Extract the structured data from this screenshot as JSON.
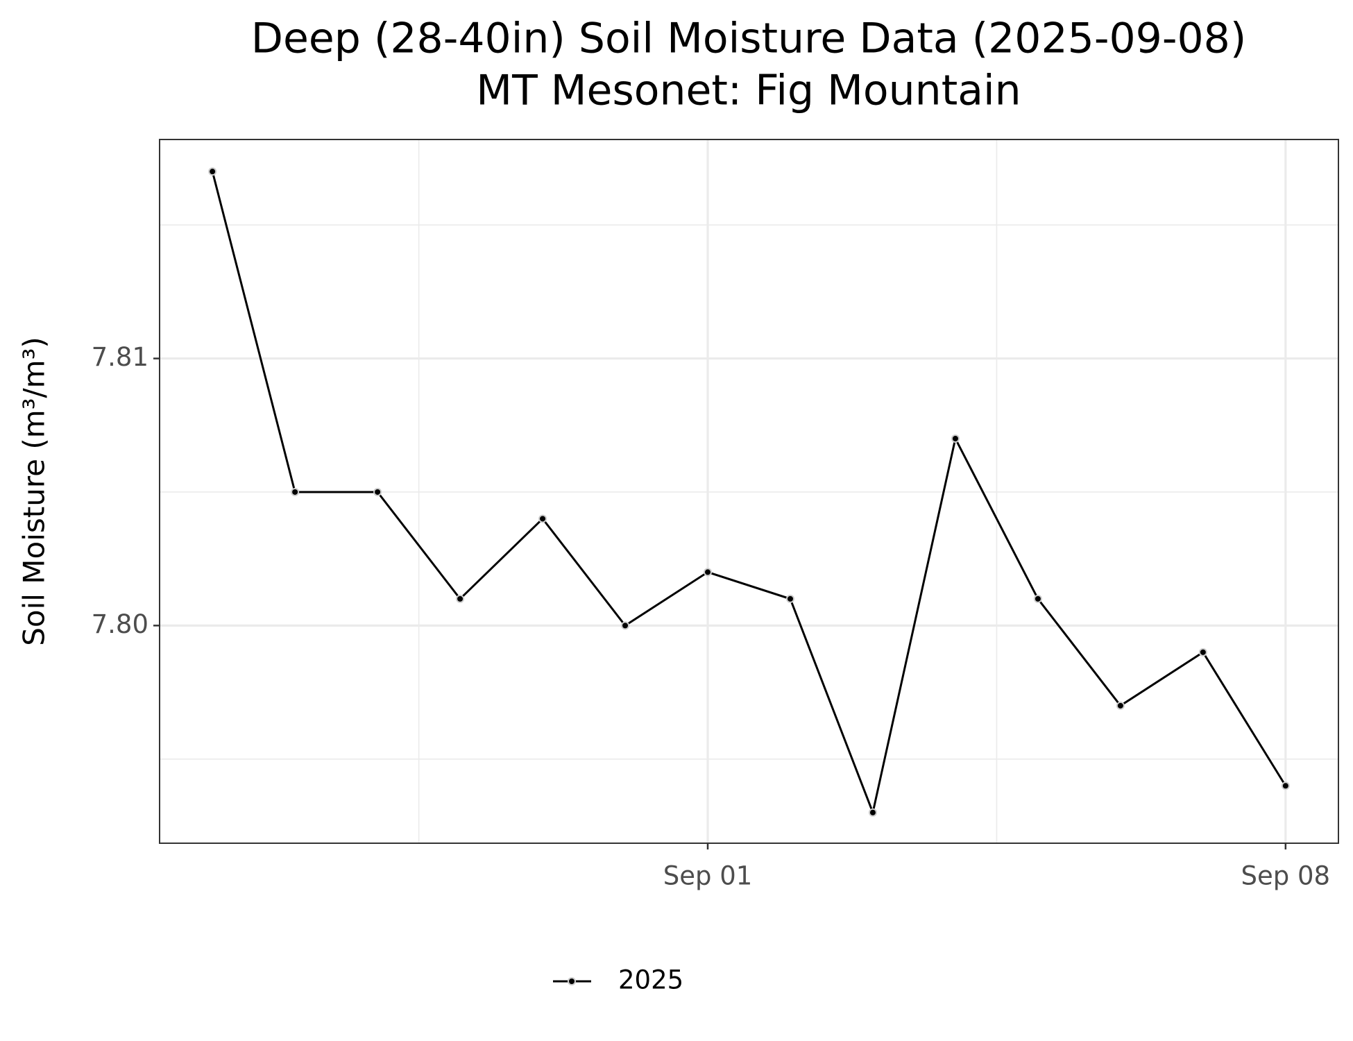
{
  "chart_data": {
    "type": "line",
    "title": "Deep (28-40in) Soil Moisture Data (2025-09-08)",
    "subtitle": "MT Mesonet: Fig Mountain",
    "y_label": "Soil Moisture (m³/m³)",
    "x": [
      "08-26",
      "08-27",
      "08-28",
      "08-29",
      "08-30",
      "08-31",
      "09-01",
      "09-02",
      "09-03",
      "09-04",
      "09-05",
      "09-06",
      "09-07",
      "09-08"
    ],
    "series": [
      {
        "name": "2025",
        "color": "#000000",
        "values": [
          7.817,
          7.805,
          7.805,
          7.801,
          7.804,
          7.8,
          7.802,
          7.801,
          7.793,
          7.807,
          7.801,
          7.797,
          7.799,
          7.794
        ]
      }
    ],
    "xlim": [
      "08-25 08:38",
      "09-08 15:22"
    ],
    "xticks": [
      {
        "value": "09-01",
        "label": "Sep 01"
      },
      {
        "value": "09-08",
        "label": "Sep 08"
      }
    ],
    "minor_xticks": [
      "08-28 12:00",
      "09-04 12:00"
    ],
    "ylim": [
      7.79185,
      7.8182
    ],
    "yticks": [
      {
        "value": 7.8,
        "label": "7.80"
      },
      7.81
    ],
    "minor_yticks": [
      7.795,
      7.805,
      7.815
    ],
    "grid": true,
    "legend": "bottom"
  }
}
